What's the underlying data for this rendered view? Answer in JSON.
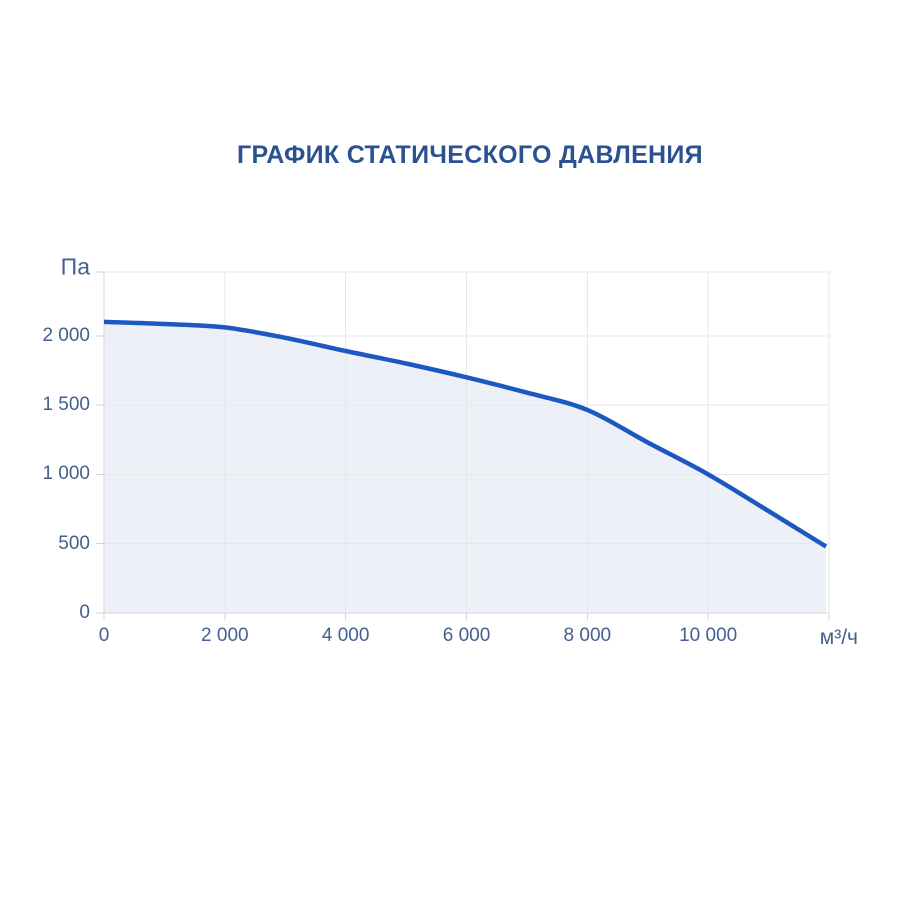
{
  "page": {
    "background_color": "#ffffff"
  },
  "chart_data": {
    "type": "area",
    "title": "ГРАФИК СТАТИЧЕСКОГО ДАВЛЕНИЯ",
    "y_unit": "Па",
    "x_unit": "м³/ч",
    "xlabel": "м³/ч",
    "ylabel": "Па",
    "xlim": [
      0,
      12000
    ],
    "ylim": [
      0,
      2460
    ],
    "x_ticks": [
      0,
      2000,
      4000,
      6000,
      8000,
      10000
    ],
    "x_tick_labels": [
      "0",
      "2 000",
      "4 000",
      "6 000",
      "8 000",
      "10 000"
    ],
    "y_ticks": [
      0,
      500,
      1000,
      1500,
      2000
    ],
    "y_tick_labels": [
      "0",
      "500",
      "1 000",
      "1 500",
      "2 000"
    ],
    "grid": true,
    "legend": false,
    "series": [
      {
        "points": [
          [
            0,
            2100
          ],
          [
            1000,
            2085
          ],
          [
            2000,
            2060
          ],
          [
            3000,
            1985
          ],
          [
            4000,
            1890
          ],
          [
            5000,
            1800
          ],
          [
            6000,
            1700
          ],
          [
            7000,
            1590
          ],
          [
            8000,
            1465
          ],
          [
            9000,
            1230
          ],
          [
            10000,
            1000
          ],
          [
            11000,
            735
          ],
          [
            11950,
            480
          ]
        ]
      }
    ],
    "colors": {
      "line": "#1c57c2",
      "fill": "#edf1f7",
      "grid": "#e5e7ec",
      "axis": "#d2d5db",
      "tick_label": "#44608e",
      "title": "#2b5191"
    }
  }
}
